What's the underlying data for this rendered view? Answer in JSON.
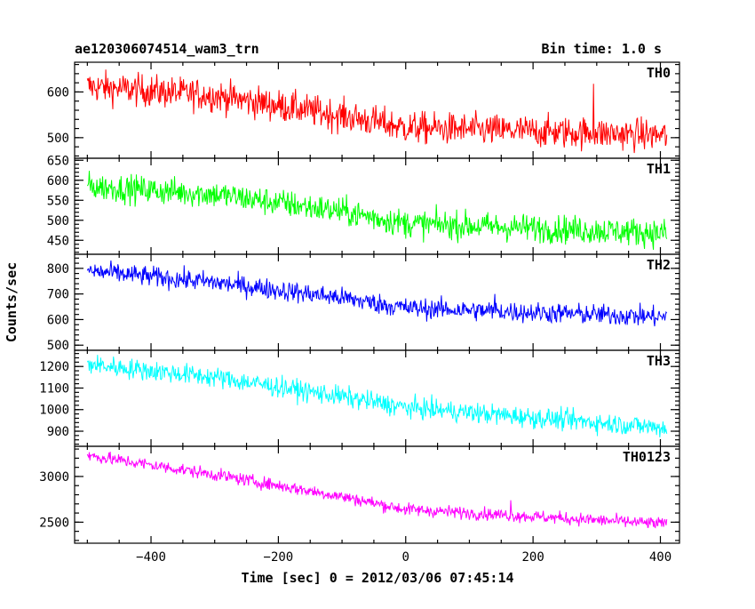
{
  "chart_data": {
    "type": "line",
    "title": "ae120306074514_wam3_trn",
    "bin_time": "Bin time: 1.0 s",
    "xlabel": "Time [sec] 0 = 2012/03/06 07:45:14",
    "ylabel": "Counts/sec",
    "xlim": [
      -520,
      430
    ],
    "x_range": [
      -500,
      410
    ],
    "xticks": [
      -400,
      -200,
      0,
      200,
      400
    ],
    "xtick_labels": [
      "−400",
      "−200",
      "0",
      "200",
      "400"
    ],
    "panels": [
      {
        "name": "TH0",
        "color": "#ff0000",
        "ylim": [
          455,
          665
        ],
        "yticks": [
          500,
          600
        ],
        "ytick_labels": [
          "500",
          "600"
        ],
        "trend": [
          [
            -500,
            612
          ],
          [
            -300,
            592
          ],
          [
            -100,
            548
          ],
          [
            0,
            522
          ],
          [
            410,
            505
          ]
        ],
        "noise": 28,
        "spikes": [
          [
            295,
            618
          ]
        ]
      },
      {
        "name": "TH1",
        "color": "#00ff00",
        "ylim": [
          415,
          655
        ],
        "yticks": [
          450,
          500,
          550,
          600,
          650
        ],
        "ytick_labels": [
          "450",
          "500",
          "550",
          "600",
          "650"
        ],
        "trend": [
          [
            -500,
            585
          ],
          [
            -300,
            565
          ],
          [
            -100,
            522
          ],
          [
            0,
            492
          ],
          [
            410,
            468
          ]
        ],
        "noise": 28,
        "spikes": []
      },
      {
        "name": "TH2",
        "color": "#0000ff",
        "ylim": [
          480,
          855
        ],
        "yticks": [
          500,
          600,
          700,
          800
        ],
        "ytick_labels": [
          "500",
          "600",
          "700",
          "800"
        ],
        "trend": [
          [
            -500,
            790
          ],
          [
            -300,
            745
          ],
          [
            -100,
            685
          ],
          [
            0,
            645
          ],
          [
            410,
            610
          ]
        ],
        "noise": 32,
        "spikes": [
          [
            140,
            700
          ]
        ]
      },
      {
        "name": "TH3",
        "color": "#00ffff",
        "ylim": [
          830,
          1275
        ],
        "yticks": [
          900,
          1000,
          1100,
          1200
        ],
        "ytick_labels": [
          "900",
          "1000",
          "1100",
          "1200"
        ],
        "trend": [
          [
            -500,
            1210
          ],
          [
            -300,
            1150
          ],
          [
            -100,
            1060
          ],
          [
            0,
            1010
          ],
          [
            410,
            915
          ]
        ],
        "noise": 38,
        "spikes": []
      },
      {
        "name": "TH0123",
        "color": "#ff00ff",
        "ylim": [
          2270,
          3330
        ],
        "yticks": [
          2500,
          3000
        ],
        "ytick_labels": [
          "2500",
          "3000"
        ],
        "trend": [
          [
            -500,
            3230
          ],
          [
            -300,
            3020
          ],
          [
            -100,
            2780
          ],
          [
            0,
            2640
          ],
          [
            410,
            2480
          ]
        ],
        "noise": 55,
        "spikes": [
          [
            165,
            2740
          ]
        ]
      }
    ]
  }
}
